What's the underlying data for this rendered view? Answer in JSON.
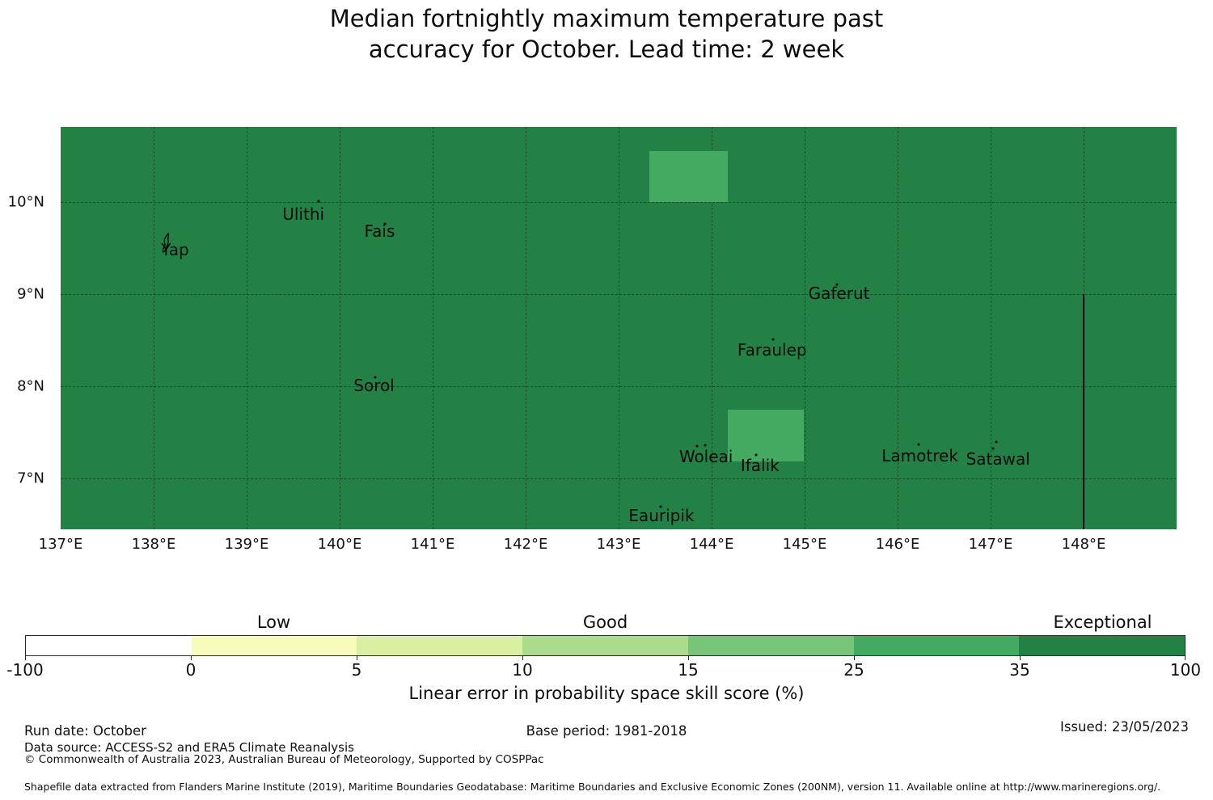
{
  "title": "Median fortnightly maximum temperature past\naccuracy for October. Lead time: 2 week",
  "chart_data": {
    "type": "heatmap",
    "title": "Median fortnightly maximum temperature past accuracy for October. Lead time: 2 week",
    "colorbar_label": "Linear error in probability space skill score (%)",
    "lon_range": [
      137.0,
      149.0
    ],
    "lat_range": [
      6.45,
      10.82
    ],
    "x_ticks": [
      {
        "lon": 137,
        "label": "137°E"
      },
      {
        "lon": 138,
        "label": "138°E"
      },
      {
        "lon": 139,
        "label": "139°E"
      },
      {
        "lon": 140,
        "label": "140°E"
      },
      {
        "lon": 141,
        "label": "141°E"
      },
      {
        "lon": 142,
        "label": "142°E"
      },
      {
        "lon": 143,
        "label": "143°E"
      },
      {
        "lon": 144,
        "label": "144°E"
      },
      {
        "lon": 145,
        "label": "145°E"
      },
      {
        "lon": 146,
        "label": "146°E"
      },
      {
        "lon": 147,
        "label": "147°E"
      },
      {
        "lon": 148,
        "label": "148°E"
      }
    ],
    "y_ticks": [
      {
        "lat": 10,
        "label": "10°N"
      },
      {
        "lat": 9,
        "label": "9°N"
      },
      {
        "lat": 8,
        "label": "8°N"
      },
      {
        "lat": 7,
        "label": "7°N"
      }
    ],
    "grid": true,
    "background_color": "#248145",
    "background_value_bin": "35-100 (Exceptional)",
    "anomaly_cells": [
      {
        "lon0": 143.33,
        "lon1": 144.17,
        "lat0": 10.0,
        "lat1": 10.56,
        "value_bin": "25-35",
        "color": "#44aa61"
      },
      {
        "lon0": 144.17,
        "lon1": 144.99,
        "lat0": 7.19,
        "lat1": 7.75,
        "value_bin": "25-35",
        "color": "#44aa61"
      }
    ],
    "eez_boundary": {
      "lon": 148.0,
      "lat_top": 9.0,
      "lat_bottom": 6.45
    },
    "islands": [
      {
        "name": "Yap",
        "label_lon": 138.23,
        "label_lat": 9.49,
        "marker": "shape",
        "marker_lon": 138.14,
        "marker_lat": 9.54,
        "dots": []
      },
      {
        "name": "Ulithi",
        "label_lon": 139.61,
        "label_lat": 9.87,
        "marker": "dots",
        "dots": [
          [
            139.77,
            10.01
          ]
        ]
      },
      {
        "name": "Fais",
        "label_lon": 140.43,
        "label_lat": 9.69,
        "marker": "dots",
        "dots": [
          [
            140.49,
            9.77
          ]
        ]
      },
      {
        "name": "Sorol",
        "label_lon": 140.37,
        "label_lat": 8.01,
        "marker": "dots",
        "dots": [
          [
            140.38,
            8.1
          ]
        ]
      },
      {
        "name": "Gaferut",
        "label_lon": 145.37,
        "label_lat": 9.01,
        "marker": "dots",
        "dots": [
          [
            145.35,
            9.11
          ]
        ]
      },
      {
        "name": "Faraulep",
        "label_lon": 144.65,
        "label_lat": 8.4,
        "marker": "dots",
        "dots": [
          [
            144.66,
            8.51
          ]
        ]
      },
      {
        "name": "Woleai",
        "label_lon": 143.94,
        "label_lat": 7.24,
        "marker": "dots",
        "dots": [
          [
            143.84,
            7.35
          ],
          [
            143.93,
            7.36
          ]
        ]
      },
      {
        "name": "Ifalik",
        "label_lon": 144.52,
        "label_lat": 7.14,
        "marker": "dots",
        "dots": [
          [
            144.48,
            7.26
          ]
        ]
      },
      {
        "name": "Lamotrek",
        "label_lon": 146.24,
        "label_lat": 7.25,
        "marker": "dots",
        "dots": [
          [
            146.23,
            7.37
          ]
        ]
      },
      {
        "name": "Satawal",
        "label_lon": 147.08,
        "label_lat": 7.21,
        "marker": "dots",
        "dots": [
          [
            147.03,
            7.33
          ],
          [
            147.06,
            7.4
          ]
        ]
      },
      {
        "name": "Eauripik",
        "label_lon": 143.46,
        "label_lat": 6.6,
        "marker": "dots",
        "dots": [
          [
            143.45,
            6.7
          ]
        ]
      }
    ],
    "colorbar": {
      "boundary_labels": [
        "-100",
        "0",
        "5",
        "10",
        "15",
        "25",
        "35",
        "100"
      ],
      "segment_colors": [
        "#ffffff",
        "#f8fcba",
        "#d9efa1",
        "#abdb8b",
        "#77c578",
        "#44aa61",
        "#248145"
      ],
      "category_labels": [
        {
          "text": "Low",
          "segment": 1
        },
        {
          "text": "Good",
          "segment": 3
        },
        {
          "text": "Exceptional",
          "segment": 6
        }
      ]
    }
  },
  "footer": {
    "run_date": "Run date: October",
    "base_period": "Base period: 1981-2018",
    "issued": "Issued: 23/05/2023",
    "data_source": "Data source: ACCESS-S2 and ERA5 Climate Reanalysis",
    "copyright": "© Commonwealth of Australia 2023, Australian Bureau of Meteorology, Supported by COSPPac",
    "shapefile_note": "Shapefile data extracted from Flanders Marine Institute (2019), Maritime Boundaries Geodatabase: Maritime Boundaries and Exclusive Economic Zones (200NM), version 11. Available online at http://www.marineregions.org/."
  }
}
